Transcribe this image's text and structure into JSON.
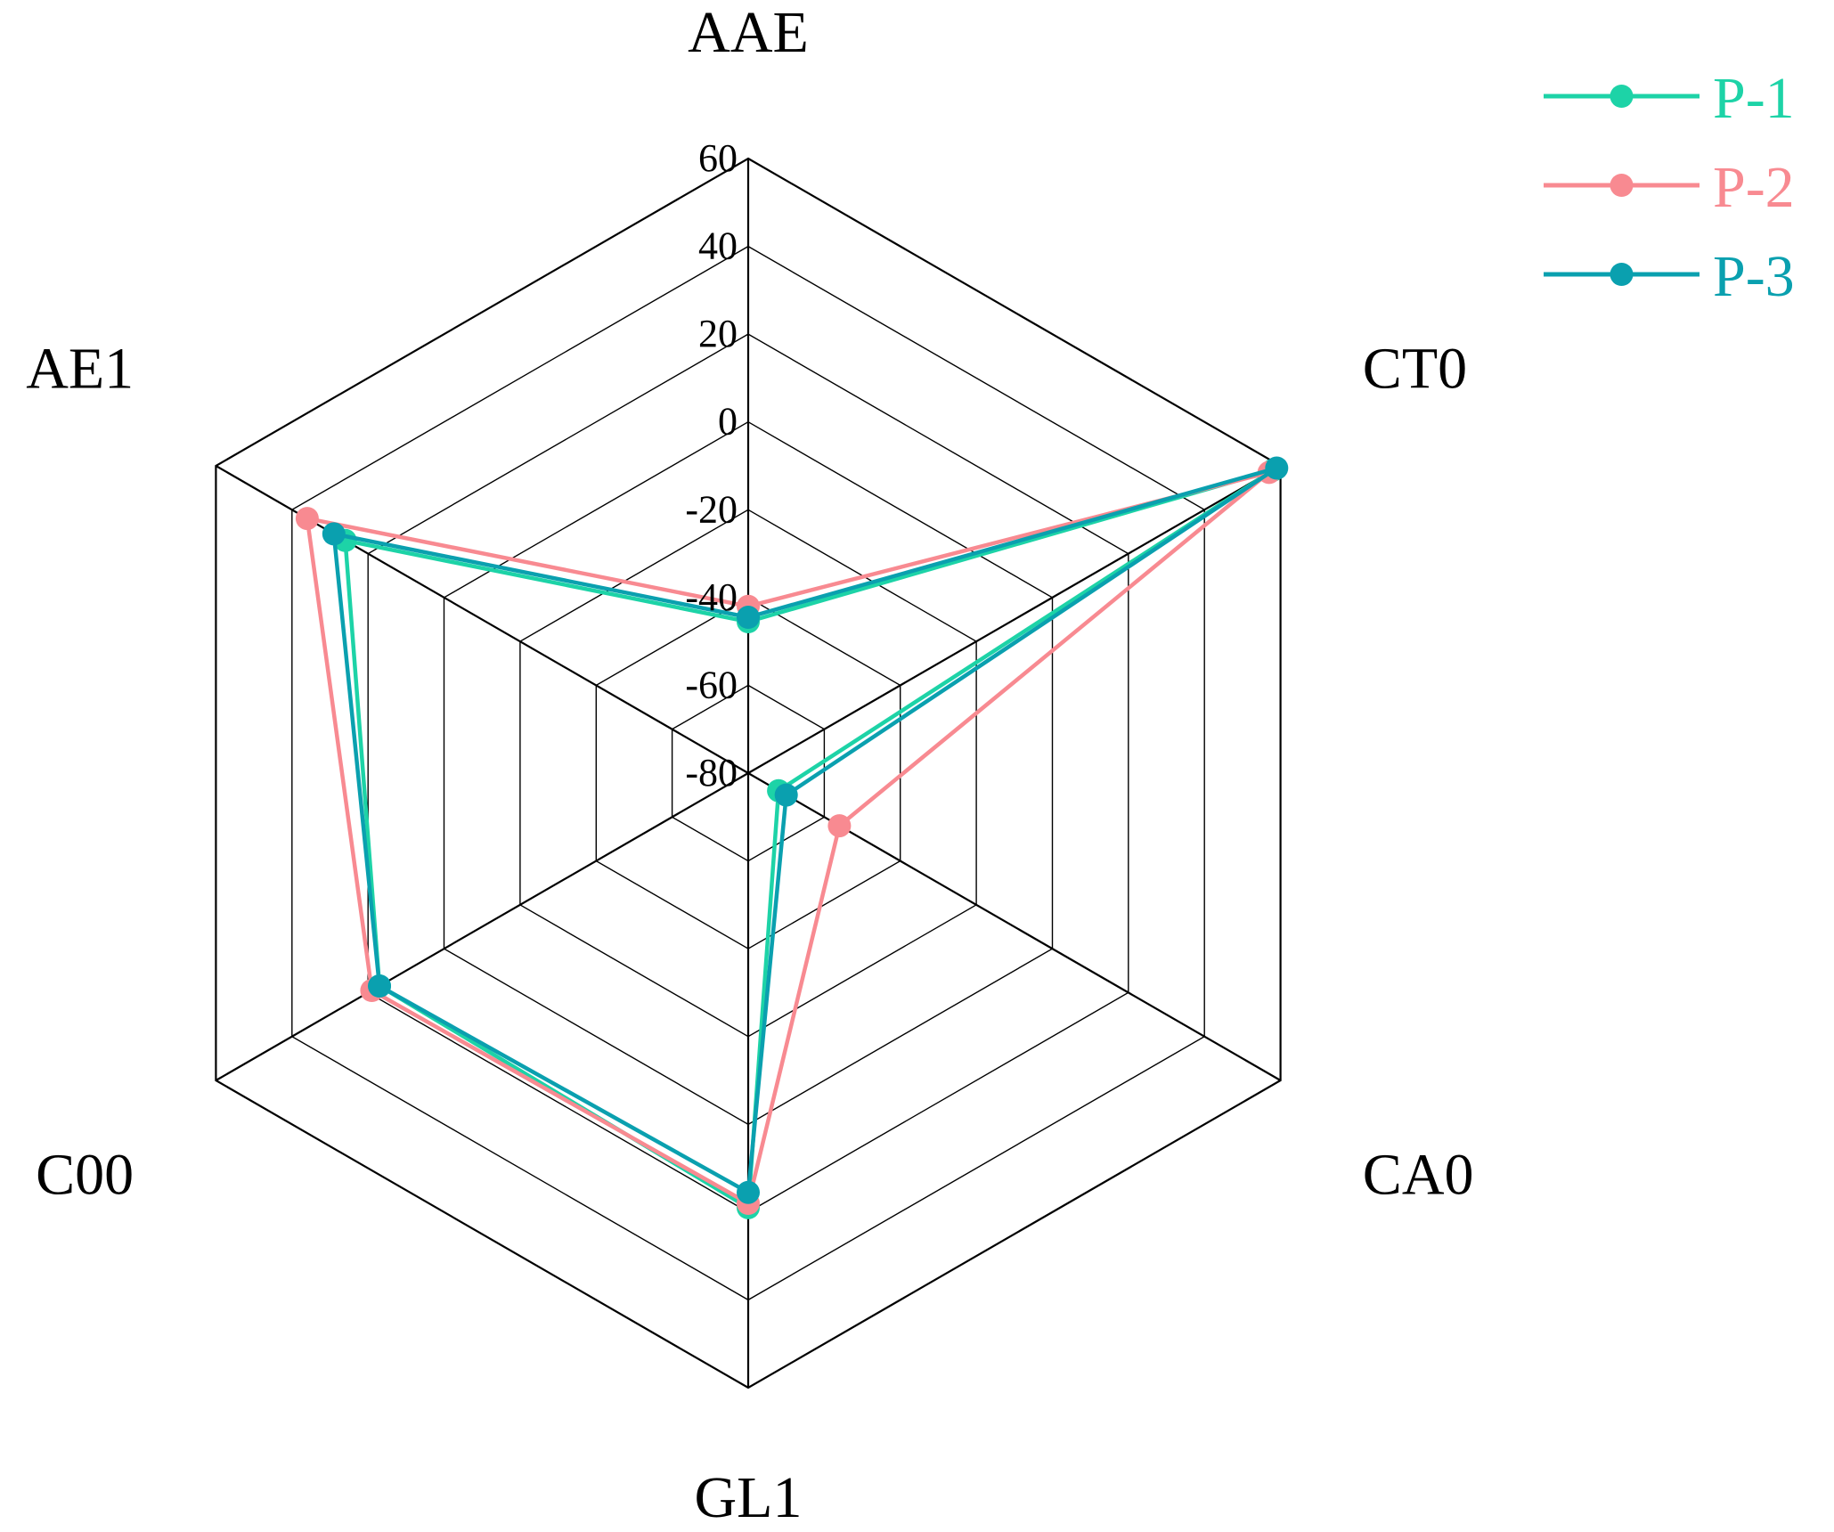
{
  "chart_data": {
    "type": "radar",
    "axes": [
      "AAE",
      "CT0",
      "CA0",
      "GL1",
      "C00",
      "AE1"
    ],
    "rlim": [
      -80,
      60
    ],
    "ticks": [
      60,
      40,
      20,
      0,
      -20,
      -40,
      -60,
      -80
    ],
    "tick_labels": [
      "60",
      "40",
      "20",
      "0",
      "-20",
      "-40",
      "-60",
      "-80"
    ],
    "grid": true,
    "legend_position": "top-right",
    "series": [
      {
        "name": "P-1",
        "color": "#1dd3a7",
        "values": [
          -45.5,
          58,
          -72,
          19,
          17,
          26
        ]
      },
      {
        "name": "P-2",
        "color": "#f88a91",
        "values": [
          -42,
          57,
          -56,
          18,
          19,
          36
        ]
      },
      {
        "name": "P-3",
        "color": "#0aa0af",
        "values": [
          -44.5,
          59,
          -70,
          15.5,
          17,
          29
        ]
      }
    ]
  }
}
